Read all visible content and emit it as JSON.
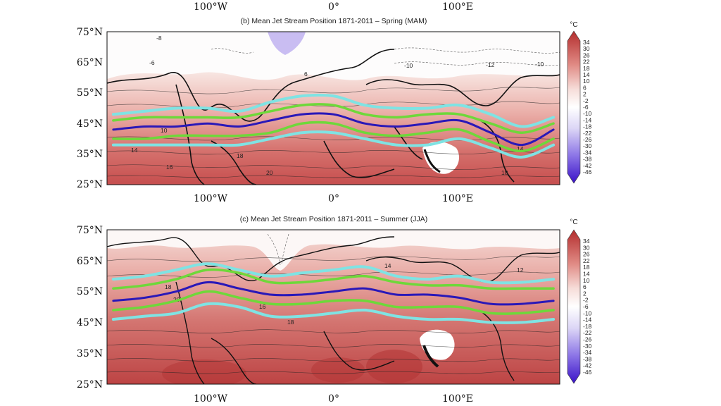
{
  "top_axis": {
    "lon_labels": [
      "100°W",
      "0°",
      "100°E"
    ]
  },
  "panels": [
    {
      "id": "spring",
      "title": "(b) Mean Jet Stream Position 1871-2011 – Spring  (MAM)",
      "lat_labels": [
        "75°N",
        "65°N",
        "55°N",
        "45°N",
        "35°N",
        "25°N"
      ],
      "lon_labels": [
        "100°W",
        "0°",
        "100°E"
      ],
      "colorbar": {
        "unit": "°C",
        "ticks": [
          "34",
          "30",
          "26",
          "22",
          "18",
          "14",
          "10",
          "6",
          "2",
          "-2",
          "-6",
          "-10",
          "-14",
          "-18",
          "-22",
          "-26",
          "-30",
          "-34",
          "-38",
          "-42",
          "-46"
        ]
      },
      "contour_labels": [
        "-8",
        "-6",
        "-10",
        "-12",
        "-10",
        "6",
        "10",
        "14",
        "18",
        "20",
        "18",
        "16",
        "14"
      ],
      "jet_lines": {
        "units": "lat_degN_at_lon",
        "lon": [
          -175,
          -150,
          -125,
          -100,
          -75,
          -50,
          -25,
          0,
          25,
          50,
          75,
          100,
          125,
          150,
          175
        ],
        "mean": [
          43,
          44,
          44,
          45,
          44,
          46,
          48,
          48,
          45,
          44,
          45,
          46,
          42,
          38,
          43
        ],
        "inner_north": [
          46,
          47,
          47,
          47,
          47,
          49,
          51,
          51,
          48,
          47,
          48,
          48,
          45,
          42,
          45
        ],
        "inner_south": [
          40,
          40,
          41,
          41,
          41,
          42,
          45,
          45,
          42,
          41,
          42,
          43,
          39,
          36,
          40
        ],
        "outer_north": [
          48,
          49,
          50,
          50,
          49,
          52,
          54,
          54,
          51,
          50,
          50,
          51,
          48,
          44,
          47
        ],
        "outer_south": [
          38,
          38,
          38,
          38,
          38,
          40,
          42,
          42,
          40,
          38,
          38,
          40,
          37,
          34,
          38
        ]
      }
    },
    {
      "id": "summer",
      "title": "(c) Mean Jet Stream Position 1871-2011 – Summer (JJA)",
      "lat_labels": [
        "75°N",
        "65°N",
        "55°N",
        "45°N",
        "35°N",
        "25°N"
      ],
      "lon_labels": [
        "100°W",
        "0°",
        "100°E"
      ],
      "colorbar": {
        "unit": "°C",
        "ticks": [
          "34",
          "30",
          "26",
          "22",
          "18",
          "14",
          "10",
          "6",
          "2",
          "-2",
          "-6",
          "-10",
          "-14",
          "-18",
          "-22",
          "-26",
          "-30",
          "-34",
          "-38",
          "-42",
          "-46"
        ]
      },
      "contour_labels": [
        "14",
        "12",
        "18",
        "20",
        "16",
        "18"
      ],
      "jet_lines": {
        "units": "lat_degN_at_lon",
        "lon": [
          -175,
          -150,
          -125,
          -100,
          -75,
          -50,
          -25,
          0,
          25,
          50,
          75,
          100,
          125,
          150,
          175
        ],
        "mean": [
          52,
          53,
          55,
          58,
          56,
          54,
          54,
          55,
          56,
          54,
          54,
          53,
          51,
          51,
          52
        ],
        "inner_north": [
          56,
          57,
          59,
          62,
          61,
          58,
          58,
          59,
          60,
          58,
          57,
          57,
          56,
          56,
          56
        ],
        "inner_south": [
          49,
          50,
          52,
          55,
          53,
          51,
          51,
          52,
          52,
          50,
          50,
          50,
          48,
          48,
          49
        ],
        "outer_north": [
          59,
          60,
          62,
          64,
          62,
          60,
          61,
          62,
          63,
          60,
          59,
          60,
          58,
          58,
          59
        ],
        "outer_south": [
          46,
          47,
          48,
          51,
          50,
          47,
          47,
          48,
          49,
          47,
          46,
          46,
          45,
          45,
          46
        ]
      }
    }
  ],
  "colors": {
    "jet_mean": "#2a18b8",
    "jet_inner": "#6ed83a",
    "jet_outer": "#7fe3e3",
    "warm": "#c03a3a",
    "cold": "#4a2ad0"
  }
}
